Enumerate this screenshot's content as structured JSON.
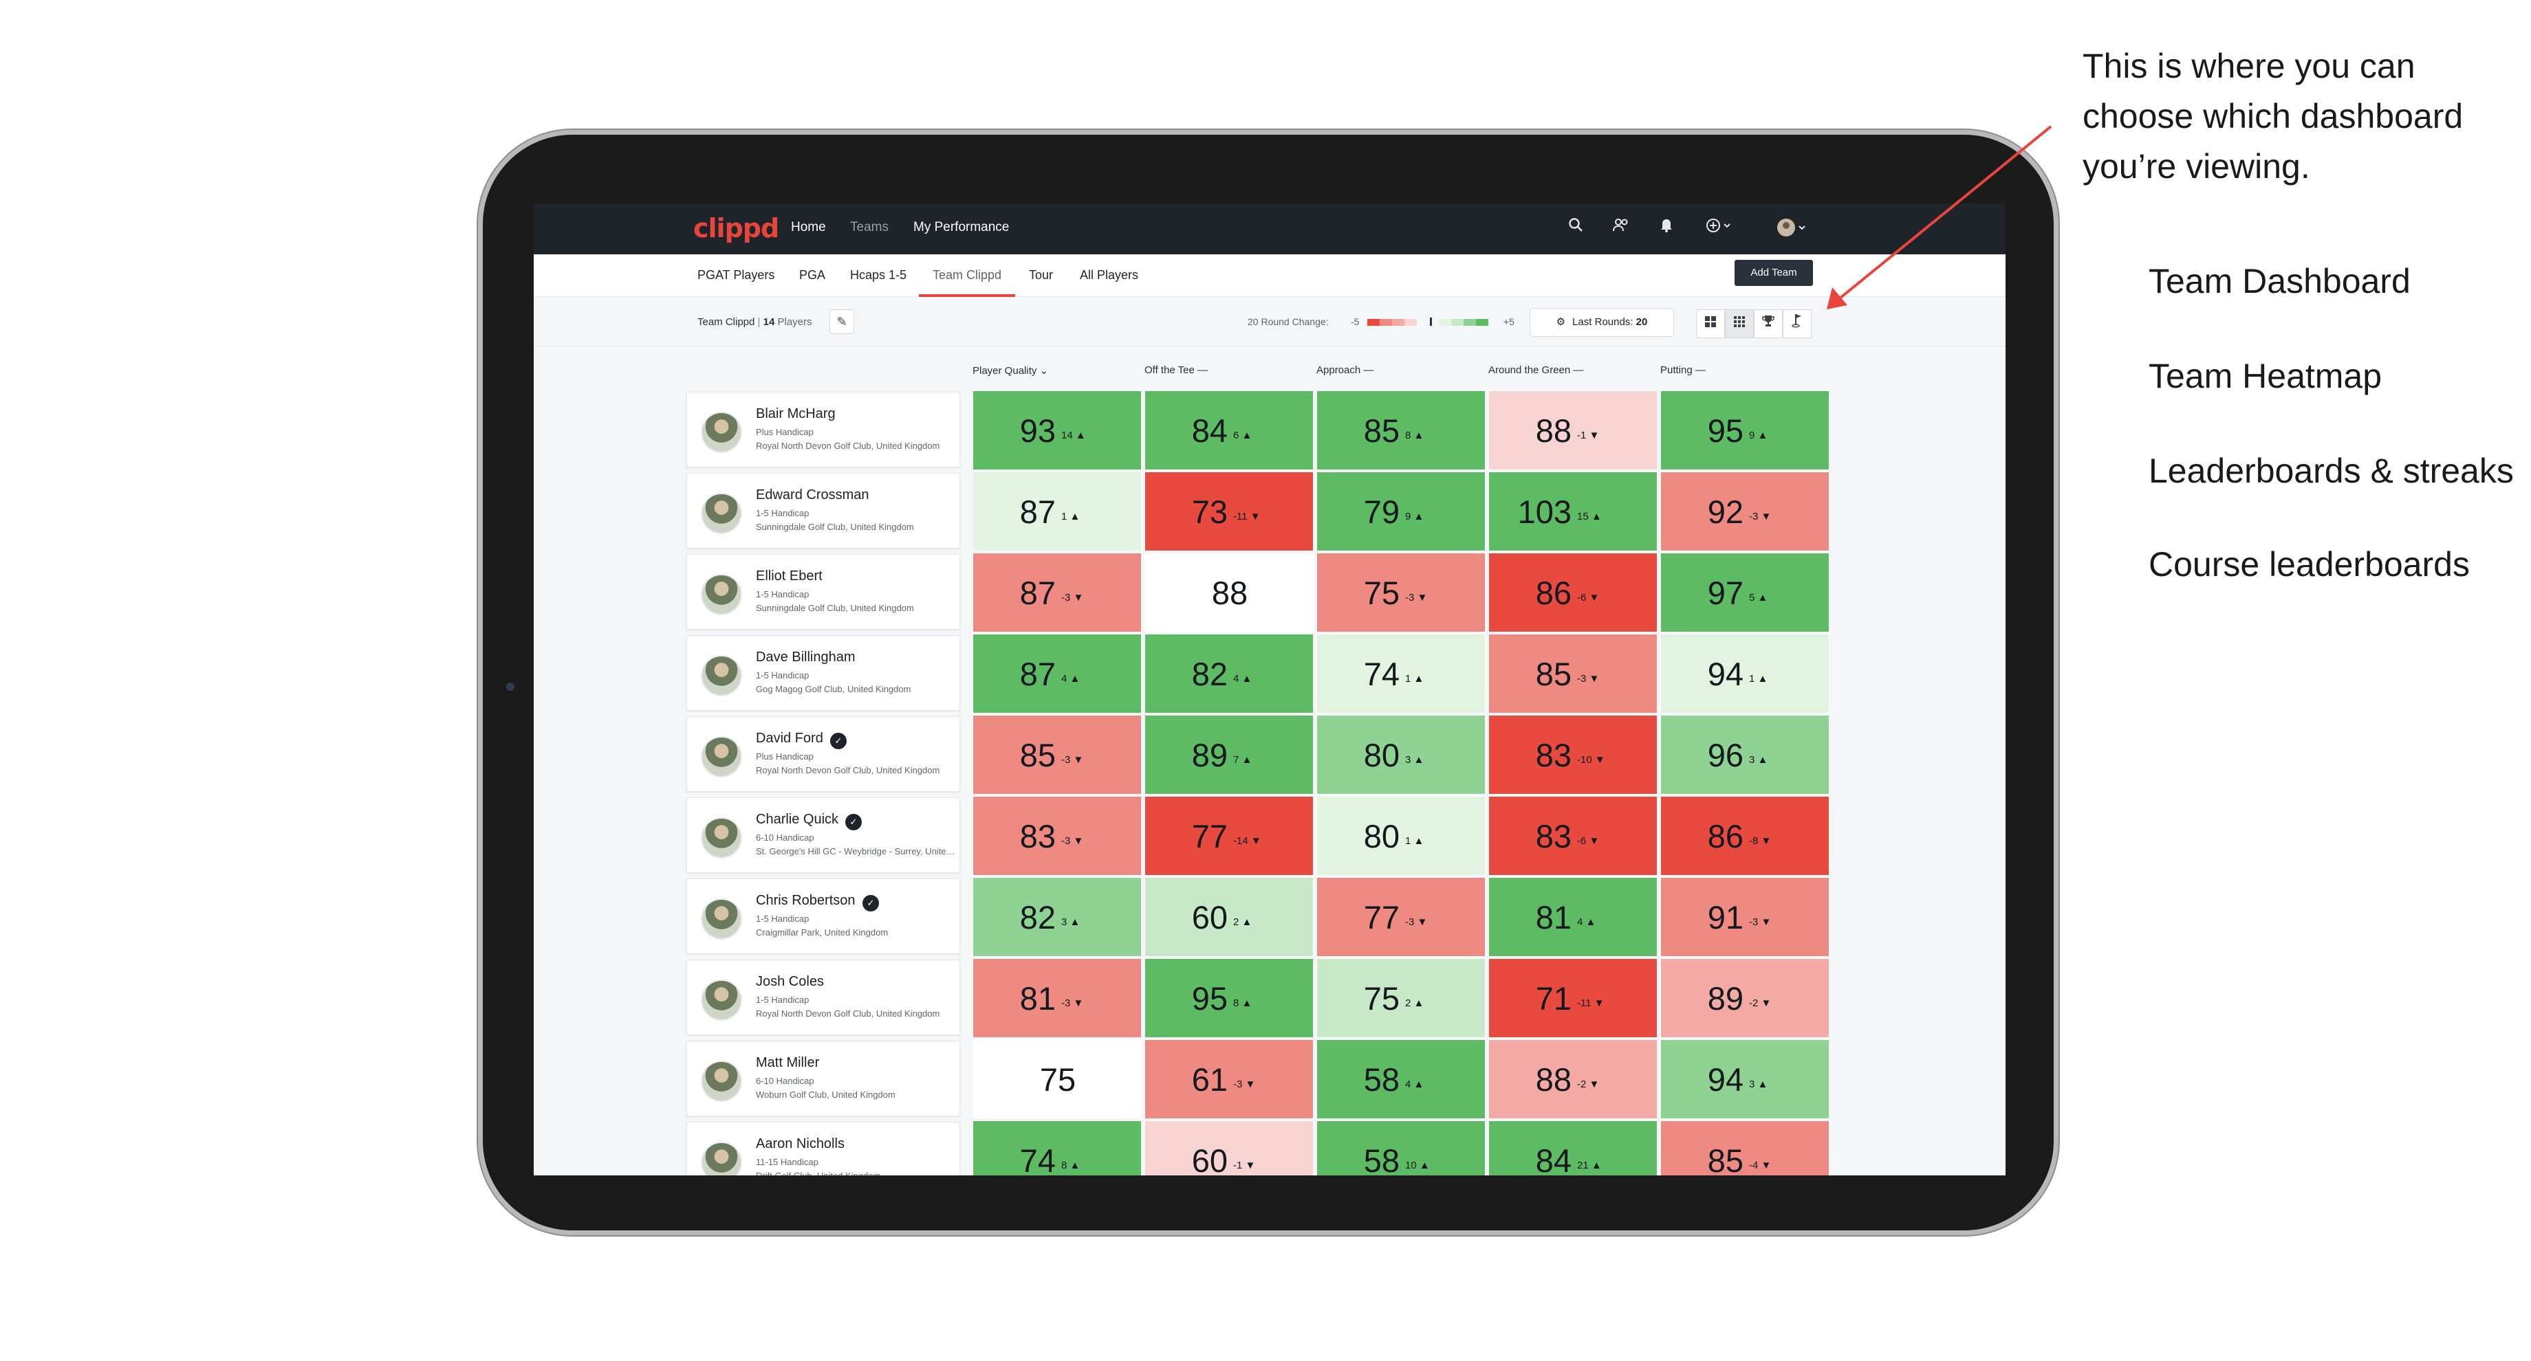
{
  "annotation": {
    "lines": [
      "This is where you can",
      "choose which dashboard",
      "you’re viewing."
    ],
    "options": [
      "Team Dashboard",
      "Team Heatmap",
      "Leaderboards & streaks",
      "Course leaderboards"
    ]
  },
  "app": {
    "logo": "clippd",
    "nav": {
      "home": "Home",
      "teams": "Teams",
      "performance": "My Performance"
    },
    "tabs": [
      "PGAT Players",
      "PGA",
      "Hcaps 1-5",
      "Team Clippd",
      "Tour",
      "All Players"
    ],
    "active_tab": "Team Clippd",
    "add_team": "Add Team",
    "filter": {
      "team_name": "Team Clippd",
      "separator": " | ",
      "player_count": "14",
      "players_word": "Players",
      "round_change_label": "20 Round Change:",
      "scale_min": "-5",
      "scale_max": "+5",
      "last_rounds_label": "Last Rounds:",
      "last_rounds_value": "20"
    },
    "columns": [
      "Player Quality",
      "Off the Tee",
      "Approach",
      "Around the Green",
      "Putting"
    ],
    "sort_column": "Player Quality",
    "colors": {
      "dark_green": "#5dbb63",
      "mid_green": "#8fd394",
      "light_green": "#c7e9c7",
      "pale_green": "#e3f3e1",
      "white": "#ffffff",
      "pale_red": "#f7d4d1",
      "light_red": "#f3aaa4",
      "mid_red": "#ee8a82",
      "dark_red": "#e84a3f"
    },
    "players": [
      {
        "name": "Blair McHarg",
        "hcp": "Plus Handicap",
        "club": "Royal North Devon Golf Club, United Kingdom",
        "badge": false,
        "cells": [
          {
            "v": "93",
            "d": "14",
            "dir": "up",
            "c": "dark_green"
          },
          {
            "v": "84",
            "d": "6",
            "dir": "up",
            "c": "dark_green"
          },
          {
            "v": "85",
            "d": "8",
            "dir": "up",
            "c": "dark_green"
          },
          {
            "v": "88",
            "d": "-1",
            "dir": "down",
            "c": "pale_red"
          },
          {
            "v": "95",
            "d": "9",
            "dir": "up",
            "c": "dark_green"
          }
        ]
      },
      {
        "name": "Edward Crossman",
        "hcp": "1-5 Handicap",
        "club": "Sunningdale Golf Club, United Kingdom",
        "badge": false,
        "cells": [
          {
            "v": "87",
            "d": "1",
            "dir": "up",
            "c": "pale_green"
          },
          {
            "v": "73",
            "d": "-11",
            "dir": "down",
            "c": "dark_red"
          },
          {
            "v": "79",
            "d": "9",
            "dir": "up",
            "c": "dark_green"
          },
          {
            "v": "103",
            "d": "15",
            "dir": "up",
            "c": "dark_green"
          },
          {
            "v": "92",
            "d": "-3",
            "dir": "down",
            "c": "mid_red"
          }
        ]
      },
      {
        "name": "Elliot Ebert",
        "hcp": "1-5 Handicap",
        "club": "Sunningdale Golf Club, United Kingdom",
        "badge": false,
        "cells": [
          {
            "v": "87",
            "d": "-3",
            "dir": "down",
            "c": "mid_red"
          },
          {
            "v": "88",
            "d": "",
            "dir": "",
            "c": "white"
          },
          {
            "v": "75",
            "d": "-3",
            "dir": "down",
            "c": "mid_red"
          },
          {
            "v": "86",
            "d": "-6",
            "dir": "down",
            "c": "dark_red"
          },
          {
            "v": "97",
            "d": "5",
            "dir": "up",
            "c": "dark_green"
          }
        ]
      },
      {
        "name": "Dave Billingham",
        "hcp": "1-5 Handicap",
        "club": "Gog Magog Golf Club, United Kingdom",
        "badge": false,
        "cells": [
          {
            "v": "87",
            "d": "4",
            "dir": "up",
            "c": "dark_green"
          },
          {
            "v": "82",
            "d": "4",
            "dir": "up",
            "c": "dark_green"
          },
          {
            "v": "74",
            "d": "1",
            "dir": "up",
            "c": "pale_green"
          },
          {
            "v": "85",
            "d": "-3",
            "dir": "down",
            "c": "mid_red"
          },
          {
            "v": "94",
            "d": "1",
            "dir": "up",
            "c": "pale_green"
          }
        ]
      },
      {
        "name": "David Ford",
        "hcp": "Plus Handicap",
        "club": "Royal North Devon Golf Club, United Kingdom",
        "badge": true,
        "cells": [
          {
            "v": "85",
            "d": "-3",
            "dir": "down",
            "c": "mid_red"
          },
          {
            "v": "89",
            "d": "7",
            "dir": "up",
            "c": "dark_green"
          },
          {
            "v": "80",
            "d": "3",
            "dir": "up",
            "c": "mid_green"
          },
          {
            "v": "83",
            "d": "-10",
            "dir": "down",
            "c": "dark_red"
          },
          {
            "v": "96",
            "d": "3",
            "dir": "up",
            "c": "mid_green"
          }
        ]
      },
      {
        "name": "Charlie Quick",
        "hcp": "6-10 Handicap",
        "club": "St. George's Hill GC - Weybridge - Surrey, United Kingdom",
        "badge": true,
        "cells": [
          {
            "v": "83",
            "d": "-3",
            "dir": "down",
            "c": "mid_red"
          },
          {
            "v": "77",
            "d": "-14",
            "dir": "down",
            "c": "dark_red"
          },
          {
            "v": "80",
            "d": "1",
            "dir": "up",
            "c": "pale_green"
          },
          {
            "v": "83",
            "d": "-6",
            "dir": "down",
            "c": "dark_red"
          },
          {
            "v": "86",
            "d": "-8",
            "dir": "down",
            "c": "dark_red"
          }
        ]
      },
      {
        "name": "Chris Robertson",
        "hcp": "1-5 Handicap",
        "club": "Craigmillar Park, United Kingdom",
        "badge": true,
        "cells": [
          {
            "v": "82",
            "d": "3",
            "dir": "up",
            "c": "mid_green"
          },
          {
            "v": "60",
            "d": "2",
            "dir": "up",
            "c": "light_green"
          },
          {
            "v": "77",
            "d": "-3",
            "dir": "down",
            "c": "mid_red"
          },
          {
            "v": "81",
            "d": "4",
            "dir": "up",
            "c": "dark_green"
          },
          {
            "v": "91",
            "d": "-3",
            "dir": "down",
            "c": "mid_red"
          }
        ]
      },
      {
        "name": "Josh Coles",
        "hcp": "1-5 Handicap",
        "club": "Royal North Devon Golf Club, United Kingdom",
        "badge": false,
        "cells": [
          {
            "v": "81",
            "d": "-3",
            "dir": "down",
            "c": "mid_red"
          },
          {
            "v": "95",
            "d": "8",
            "dir": "up",
            "c": "dark_green"
          },
          {
            "v": "75",
            "d": "2",
            "dir": "up",
            "c": "light_green"
          },
          {
            "v": "71",
            "d": "-11",
            "dir": "down",
            "c": "dark_red"
          },
          {
            "v": "89",
            "d": "-2",
            "dir": "down",
            "c": "light_red"
          }
        ]
      },
      {
        "name": "Matt Miller",
        "hcp": "6-10 Handicap",
        "club": "Woburn Golf Club, United Kingdom",
        "badge": false,
        "cells": [
          {
            "v": "75",
            "d": "",
            "dir": "",
            "c": "white"
          },
          {
            "v": "61",
            "d": "-3",
            "dir": "down",
            "c": "mid_red"
          },
          {
            "v": "58",
            "d": "4",
            "dir": "up",
            "c": "dark_green"
          },
          {
            "v": "88",
            "d": "-2",
            "dir": "down",
            "c": "light_red"
          },
          {
            "v": "94",
            "d": "3",
            "dir": "up",
            "c": "mid_green"
          }
        ]
      },
      {
        "name": "Aaron Nicholls",
        "hcp": "11-15 Handicap",
        "club": "Drift Golf Club, United Kingdom",
        "badge": false,
        "cells": [
          {
            "v": "74",
            "d": "8",
            "dir": "up",
            "c": "dark_green"
          },
          {
            "v": "60",
            "d": "-1",
            "dir": "down",
            "c": "pale_red"
          },
          {
            "v": "58",
            "d": "10",
            "dir": "up",
            "c": "dark_green"
          },
          {
            "v": "84",
            "d": "21",
            "dir": "up",
            "c": "dark_green"
          },
          {
            "v": "85",
            "d": "-4",
            "dir": "down",
            "c": "mid_red"
          }
        ]
      }
    ]
  }
}
